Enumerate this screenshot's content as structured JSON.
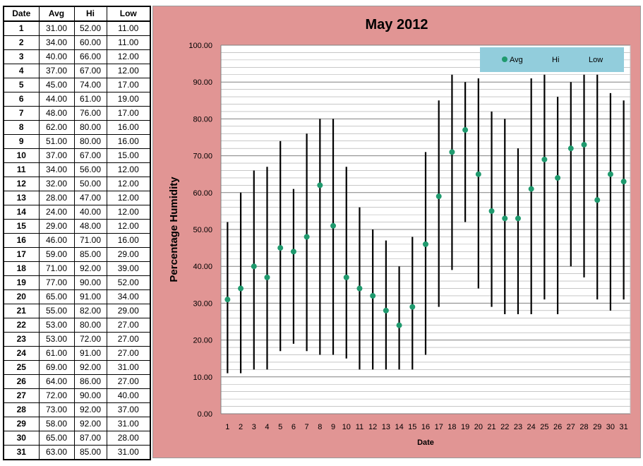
{
  "table": {
    "headers": [
      "Date",
      "Avg",
      "Hi",
      "Low"
    ],
    "rows": [
      [
        "1",
        "31.00",
        "52.00",
        "11.00"
      ],
      [
        "2",
        "34.00",
        "60.00",
        "11.00"
      ],
      [
        "3",
        "40.00",
        "66.00",
        "12.00"
      ],
      [
        "4",
        "37.00",
        "67.00",
        "12.00"
      ],
      [
        "5",
        "45.00",
        "74.00",
        "17.00"
      ],
      [
        "6",
        "44.00",
        "61.00",
        "19.00"
      ],
      [
        "7",
        "48.00",
        "76.00",
        "17.00"
      ],
      [
        "8",
        "62.00",
        "80.00",
        "16.00"
      ],
      [
        "9",
        "51.00",
        "80.00",
        "16.00"
      ],
      [
        "10",
        "37.00",
        "67.00",
        "15.00"
      ],
      [
        "11",
        "34.00",
        "56.00",
        "12.00"
      ],
      [
        "12",
        "32.00",
        "50.00",
        "12.00"
      ],
      [
        "13",
        "28.00",
        "47.00",
        "12.00"
      ],
      [
        "14",
        "24.00",
        "40.00",
        "12.00"
      ],
      [
        "15",
        "29.00",
        "48.00",
        "12.00"
      ],
      [
        "16",
        "46.00",
        "71.00",
        "16.00"
      ],
      [
        "17",
        "59.00",
        "85.00",
        "29.00"
      ],
      [
        "18",
        "71.00",
        "92.00",
        "39.00"
      ],
      [
        "19",
        "77.00",
        "90.00",
        "52.00"
      ],
      [
        "20",
        "65.00",
        "91.00",
        "34.00"
      ],
      [
        "21",
        "55.00",
        "82.00",
        "29.00"
      ],
      [
        "22",
        "53.00",
        "80.00",
        "27.00"
      ],
      [
        "23",
        "53.00",
        "72.00",
        "27.00"
      ],
      [
        "24",
        "61.00",
        "91.00",
        "27.00"
      ],
      [
        "25",
        "69.00",
        "92.00",
        "31.00"
      ],
      [
        "26",
        "64.00",
        "86.00",
        "27.00"
      ],
      [
        "27",
        "72.00",
        "90.00",
        "40.00"
      ],
      [
        "28",
        "73.00",
        "92.00",
        "37.00"
      ],
      [
        "29",
        "58.00",
        "92.00",
        "31.00"
      ],
      [
        "30",
        "65.00",
        "87.00",
        "28.00"
      ],
      [
        "31",
        "63.00",
        "85.00",
        "31.00"
      ]
    ]
  },
  "chart_data": {
    "type": "scatter",
    "title": "May 2012",
    "xlabel": "Date",
    "ylabel": "Percentage Humidity",
    "x": [
      1,
      2,
      3,
      4,
      5,
      6,
      7,
      8,
      9,
      10,
      11,
      12,
      13,
      14,
      15,
      16,
      17,
      18,
      19,
      20,
      21,
      22,
      23,
      24,
      25,
      26,
      27,
      28,
      29,
      30,
      31
    ],
    "ylim": [
      0,
      100
    ],
    "yticks": [
      "0.00",
      "10.00",
      "20.00",
      "30.00",
      "40.00",
      "50.00",
      "60.00",
      "70.00",
      "80.00",
      "90.00",
      "100.00"
    ],
    "grid": "horizontal",
    "legend_position": "top-right",
    "series": [
      {
        "name": "Avg",
        "values": [
          31,
          34,
          40,
          37,
          45,
          44,
          48,
          62,
          51,
          37,
          34,
          32,
          28,
          24,
          29,
          46,
          59,
          71,
          77,
          65,
          55,
          53,
          53,
          61,
          69,
          64,
          72,
          73,
          58,
          65,
          63
        ]
      },
      {
        "name": "Hi",
        "values": [
          52,
          60,
          66,
          67,
          74,
          61,
          76,
          80,
          80,
          67,
          56,
          50,
          47,
          40,
          48,
          71,
          85,
          92,
          90,
          91,
          82,
          80,
          72,
          91,
          92,
          86,
          90,
          92,
          92,
          87,
          85
        ]
      },
      {
        "name": "Low",
        "values": [
          11,
          11,
          12,
          12,
          17,
          19,
          17,
          16,
          16,
          15,
          12,
          12,
          12,
          12,
          12,
          16,
          29,
          39,
          52,
          34,
          29,
          27,
          27,
          27,
          31,
          27,
          40,
          37,
          31,
          28,
          31
        ]
      }
    ],
    "colors": {
      "panel_bg": "#e19594",
      "plot_bg": "#ffffff",
      "avg_marker": "#1f9a6e",
      "range_line": "#000000",
      "legend_bg": "#92cddc",
      "grid": "#a6a6a6"
    }
  }
}
